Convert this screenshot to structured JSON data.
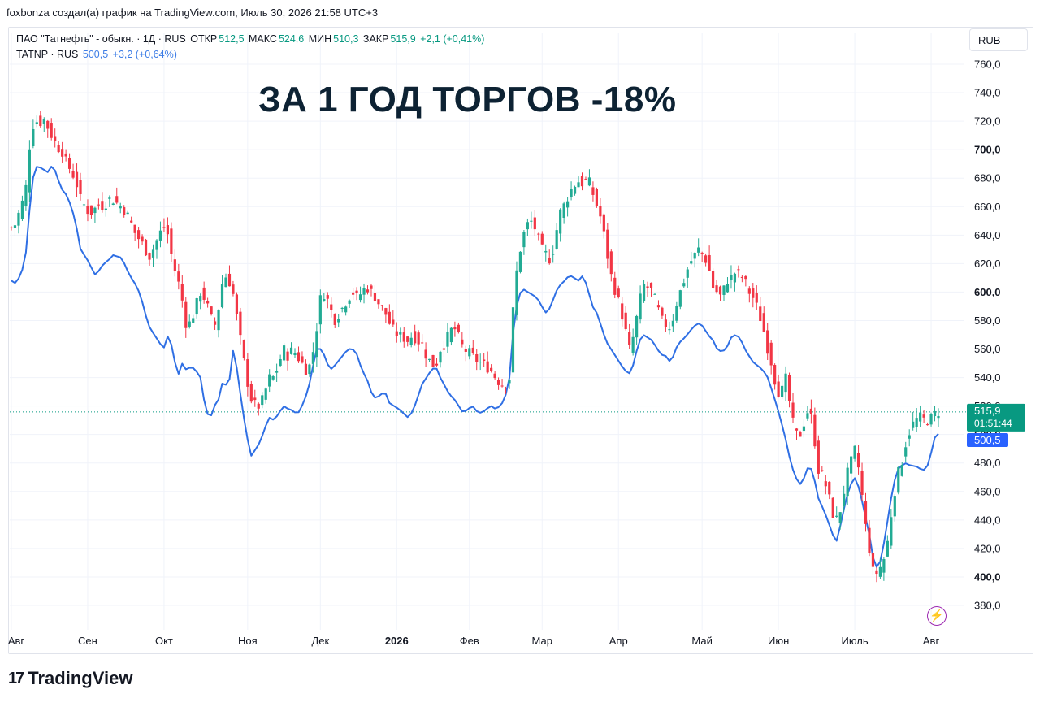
{
  "credit": "foxbonza создал(а) график на TradingView.com, Июль 30, 2026 21:58 UTC+3",
  "legend": {
    "title": "ПАО \"Татнефть\" - обыкн. · 1Д · RUS",
    "open_label": "ОТКР",
    "open": "512,5",
    "high_label": "МАКС",
    "high": "524,6",
    "low_label": "МИН",
    "low": "510,3",
    "close_label": "ЗАКР",
    "close": "515,9",
    "change": "+2,1 (+0,41%)",
    "compare_symbol": "TATNP · RUS",
    "compare_last": "500,5",
    "compare_change": "+3,2 (+0,64%)"
  },
  "headline": "ЗА 1 ГОД ТОРГОВ -18%",
  "currency": "RUB",
  "price_tag": {
    "price": "515,9",
    "countdown": "01:51:44"
  },
  "compare_tag": "500,5",
  "brand": "TradingView",
  "brand_mark": "17",
  "colors": {
    "up": "#22ab94",
    "down": "#f23645",
    "compare": "#2f6fe4",
    "tag": "#089981",
    "tag_blue": "#2962ff"
  },
  "chart_data": {
    "type": "line",
    "ylim": [
      370,
      768
    ],
    "y_ticks": [
      "760,0",
      "740,0",
      "720,0",
      "700,0",
      "680,0",
      "660,0",
      "640,0",
      "620,0",
      "600,0",
      "580,0",
      "560,0",
      "540,0",
      "520,0",
      "500,0",
      "480,0",
      "460,0",
      "440,0",
      "420,0",
      "400,0",
      "380,0"
    ],
    "y_ticks_bold": [
      "700,0",
      "600,0",
      "500,0",
      "400,0"
    ],
    "x_ticks": [
      {
        "label": "Авг",
        "x": 0
      },
      {
        "label": "Сен",
        "x": 21
      },
      {
        "label": "Окт",
        "x": 42
      },
      {
        "label": "Ноя",
        "x": 65
      },
      {
        "label": "Дек",
        "x": 85
      },
      {
        "label": "2026",
        "x": 106
      },
      {
        "label": "Фев",
        "x": 126
      },
      {
        "label": "Мар",
        "x": 146
      },
      {
        "label": "Апр",
        "x": 167
      },
      {
        "label": "Май",
        "x": 190
      },
      {
        "label": "Июн",
        "x": 211
      },
      {
        "label": "Июль",
        "x": 232
      },
      {
        "label": "Авг",
        "x": 253
      }
    ],
    "last_price": 515.9,
    "series": [
      {
        "name": "ПАО \"Татнефть\" - обыкн.",
        "style": "candles",
        "values": [
          645,
          648,
          660,
          668,
          705,
          722,
          718,
          722,
          715,
          708,
          702,
          699,
          690,
          685,
          678,
          665,
          660,
          655,
          658,
          662,
          660,
          665,
          665,
          662,
          660,
          655,
          648,
          640,
          636,
          630,
          625,
          632,
          640,
          646,
          640,
          620,
          610,
          595,
          575,
          580,
          590,
          600,
          595,
          585,
          575,
          590,
          612,
          610,
          600,
          580,
          560,
          540,
          525,
          520,
          520,
          530,
          540,
          540,
          550,
          560,
          555,
          560,
          555,
          550,
          545,
          550,
          570,
          595,
          600,
          590,
          580,
          585,
          590,
          596,
          600,
          596,
          600,
          604,
          600,
          596,
          590,
          586,
          578,
          572,
          570,
          568,
          566,
          570,
          566,
          564,
          555,
          550,
          548,
          560,
          564,
          572,
          575,
          568,
          560,
          558,
          555,
          552,
          550,
          548,
          545,
          540,
          536,
          535,
          540,
          600,
          625,
          640,
          648,
          650,
          640,
          630,
          626,
          622,
          640,
          656,
          662,
          670,
          675,
          678,
          676,
          680,
          670,
          660,
          650,
          630,
          612,
          600,
          590,
          575,
          560,
          570,
          590,
          605,
          603,
          600,
          590,
          580,
          577,
          575,
          590,
          600,
          610,
          620,
          625,
          630,
          626,
          620,
          604,
          600,
          596,
          608,
          610,
          614,
          612,
          608,
          600,
          595,
          586,
          575,
          560,
          548,
          530,
          530,
          540,
          515,
          500,
          500,
          510,
          520,
          500,
          475,
          470,
          460,
          445,
          440,
          450,
          470,
          480,
          490,
          470,
          440,
          420,
          400,
          405,
          410,
          425,
          450,
          470,
          480,
          495,
          505,
          510,
          512,
          510,
          510,
          513.8,
          515.9
        ],
        "comment_values_meaning": "approximate daily closes read from the axis"
      },
      {
        "name": "TATNP · RUS",
        "style": "line",
        "values": [
          608,
          606,
          612,
          622,
          660,
          688,
          688,
          686,
          684,
          690,
          680,
          672,
          668,
          660,
          648,
          630,
          625,
          620,
          612,
          615,
          620,
          622,
          626,
          625,
          624,
          616,
          610,
          605,
          598,
          585,
          575,
          570,
          565,
          560,
          570,
          560,
          540,
          550,
          545,
          548,
          545,
          540,
          520,
          510,
          520,
          525,
          540,
          530,
          560,
          545,
          520,
          500,
          485,
          490,
          495,
          505,
          512,
          510,
          515,
          520,
          518,
          517,
          514,
          520,
          528,
          540,
          560,
          560,
          555,
          545,
          548,
          552,
          556,
          560,
          560,
          556,
          545,
          540,
          530,
          525,
          528,
          530,
          522,
          520,
          518,
          515,
          512,
          516,
          525,
          535,
          540,
          545,
          548,
          540,
          534,
          528,
          525,
          520,
          515,
          518,
          520,
          516,
          515,
          518,
          520,
          518,
          520,
          525,
          540,
          580,
          598,
          602,
          600,
          598,
          596,
          590,
          585,
          590,
          600,
          605,
          608,
          612,
          610,
          608,
          612,
          602,
          590,
          585,
          575,
          565,
          560,
          555,
          550,
          545,
          543,
          550,
          565,
          570,
          568,
          566,
          560,
          556,
          555,
          550,
          560,
          565,
          568,
          572,
          576,
          578,
          576,
          570,
          567,
          560,
          558,
          560,
          568,
          570,
          568,
          560,
          555,
          550,
          548,
          545,
          540,
          530,
          520,
          508,
          495,
          480,
          470,
          465,
          470,
          480,
          470,
          455,
          448,
          440,
          430,
          425,
          440,
          455,
          465,
          470,
          460,
          445,
          430,
          410,
          405,
          420,
          440,
          460,
          475,
          478,
          480,
          478,
          478,
          476,
          475,
          480,
          497,
          500.5
        ],
        "comment_values_meaning": "approximate daily closes read from the axis"
      }
    ]
  }
}
